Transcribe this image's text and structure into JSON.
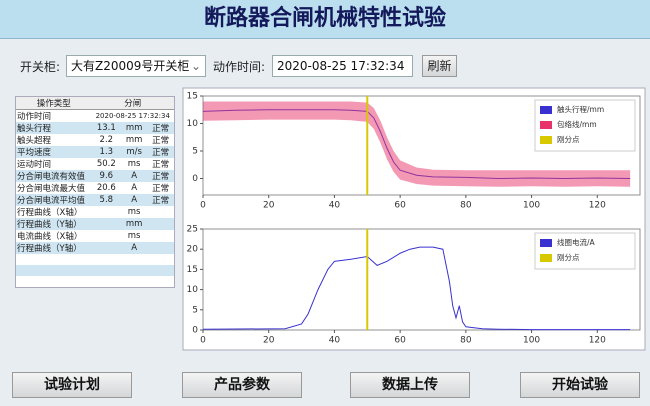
{
  "header": {
    "title": "断路器合闸机械特性试验"
  },
  "toolbar": {
    "cabinet_label": "开关柜:",
    "cabinet_value": "大有Z20009号开关柜",
    "time_label": "动作时间:",
    "time_value": "2020-08-25 17:32:34",
    "refresh": "刷新"
  },
  "table": {
    "header": [
      "操作类型",
      "分闸"
    ],
    "rows": [
      [
        "动作时间",
        "2020-08-25 17:32:34"
      ],
      [
        "触头行程",
        "13.1",
        "mm",
        "正常"
      ],
      [
        "触头超程",
        "2.2",
        "mm",
        "正常"
      ],
      [
        "平均速度",
        "1.3",
        "m/s",
        "正常"
      ],
      [
        "运动时间",
        "50.2",
        "ms",
        "正常"
      ],
      [
        "分合闸电流有效值",
        "9.6",
        "A",
        "正常"
      ],
      [
        "分合闸电流最大值",
        "20.6",
        "A",
        "正常"
      ],
      [
        "分合闸电流平均值",
        "5.8",
        "A",
        "正常"
      ],
      [
        "行程曲线（X轴）",
        "",
        "ms"
      ],
      [
        "行程曲线（Y轴）",
        "",
        "mm"
      ],
      [
        "电流曲线（X轴）",
        "",
        "ms"
      ],
      [
        "行程曲线（Y轴）",
        "",
        "A"
      ]
    ]
  },
  "buttons": [
    "试验计划",
    "产品参数",
    "数据上传",
    "开始试验"
  ],
  "chart_data": [
    {
      "type": "line",
      "xlim": [
        0,
        133
      ],
      "ylim": [
        -3,
        15
      ],
      "xticks": [
        0,
        20,
        40,
        60,
        80,
        100,
        120
      ],
      "yticks": [
        0,
        5,
        10,
        15
      ],
      "series": [
        {
          "name": "触头行程/mm",
          "color": "#3a32d0",
          "x": [
            0,
            10,
            20,
            30,
            40,
            45,
            50,
            52,
            54,
            56,
            58,
            60,
            65,
            70,
            80,
            90,
            100,
            110,
            120,
            130
          ],
          "values": [
            12.2,
            12.4,
            12.5,
            12.5,
            12.5,
            12.4,
            12.2,
            11,
            8.5,
            5.5,
            3,
            1.5,
            0.6,
            0.3,
            0.2,
            0,
            0.1,
            0,
            0.1,
            0
          ]
        },
        {
          "name": "包络线/mm",
          "color": "#e8336a",
          "x": [
            0,
            10,
            20,
            30,
            40,
            45,
            50,
            52,
            54,
            56,
            58,
            60,
            65,
            70,
            80,
            90,
            100,
            110,
            120,
            130
          ],
          "upper": [
            14,
            14,
            14,
            14,
            14,
            14,
            13.8,
            12.8,
            10.5,
            7.5,
            5,
            3.3,
            2,
            1.6,
            1.5,
            1.5,
            1.5,
            1.5,
            1.5,
            1.5
          ],
          "lower": [
            10.5,
            10.6,
            10.7,
            10.7,
            10.7,
            10.6,
            10.3,
            9,
            6.5,
            3.5,
            1.2,
            -0.2,
            -1,
            -1.3,
            -1.4,
            -1.5,
            -1.4,
            -1.5,
            -1.4,
            -1.5
          ]
        }
      ],
      "markers": [
        {
          "name": "刚分点",
          "color": "#d8c800",
          "x": 50
        }
      ]
    },
    {
      "type": "line",
      "xlim": [
        0,
        133
      ],
      "ylim": [
        0,
        25
      ],
      "xticks": [
        0,
        20,
        40,
        60,
        80,
        100,
        120
      ],
      "yticks": [
        0,
        5,
        10,
        15,
        20,
        25
      ],
      "series": [
        {
          "name": "线圈电流/A",
          "color": "#3a32d0",
          "x": [
            0,
            25,
            30,
            32,
            35,
            38,
            40,
            45,
            50,
            53,
            56,
            60,
            63,
            66,
            70,
            73,
            75,
            76,
            77,
            78,
            79,
            80,
            85,
            90,
            100,
            110,
            120,
            130
          ],
          "values": [
            0.2,
            0.3,
            1.5,
            4,
            10,
            15,
            17,
            17.5,
            18.2,
            16,
            17,
            19,
            20,
            20.5,
            20.5,
            20,
            12,
            6,
            3,
            6,
            2,
            0.8,
            0.3,
            0.2,
            0.1,
            0.1,
            0.1,
            0.1
          ]
        }
      ],
      "markers": [
        {
          "name": "刚分点",
          "color": "#d8c800",
          "x": 50
        }
      ]
    }
  ]
}
